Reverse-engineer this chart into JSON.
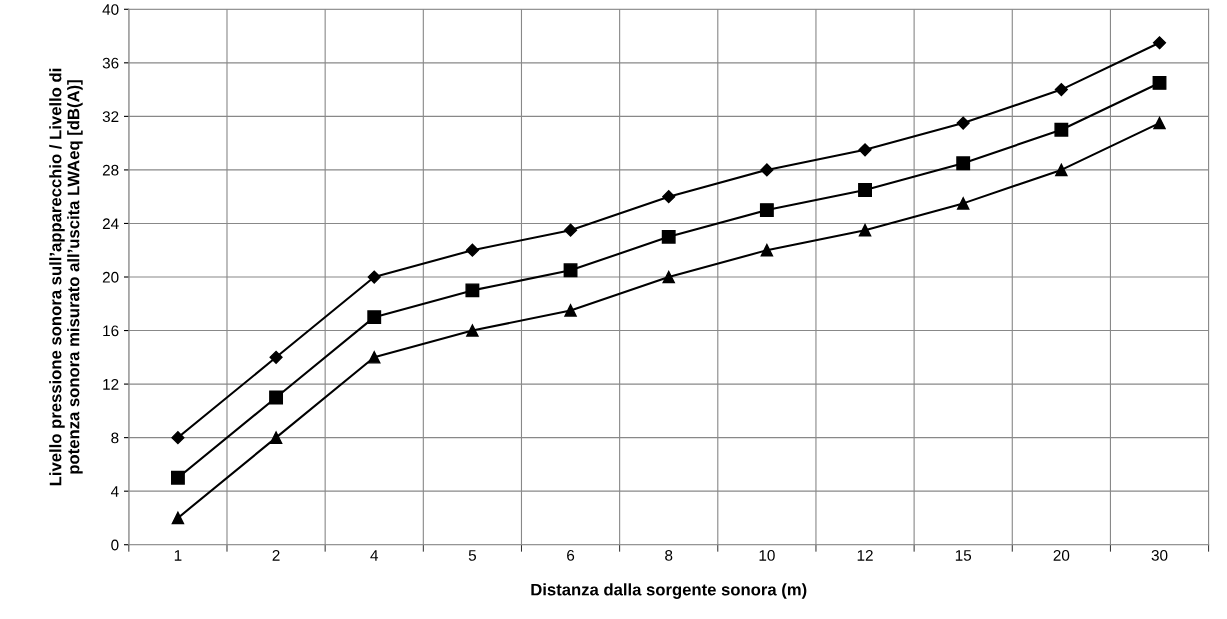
{
  "chart_data": {
    "type": "line",
    "xlabel": "Distanza dalla sorgente sonora (m)",
    "ylabel": "Livello pressione sonora sull’apparecchio / Livello di\npotenza sonora misurato all’uscita LWAeq [dB(A)]",
    "categories": [
      "1",
      "2",
      "4",
      "5",
      "6",
      "8",
      "10",
      "12",
      "15",
      "20",
      "30"
    ],
    "series": [
      {
        "color": "#000000",
        "marker": "diamond",
        "values": [
          8,
          14,
          20,
          22,
          23.5,
          26,
          28,
          29.5,
          31.5,
          34,
          37.5
        ]
      },
      {
        "color": "#000000",
        "marker": "square",
        "values": [
          5,
          11,
          17,
          19,
          20.5,
          23,
          25,
          26.5,
          28.5,
          31,
          34.5
        ]
      },
      {
        "color": "#000000",
        "marker": "triangle",
        "values": [
          2,
          8,
          14,
          16,
          17.5,
          20,
          22,
          23.5,
          25.5,
          28,
          31.5
        ]
      }
    ],
    "ylim": [
      0,
      40
    ],
    "yticks": [
      0,
      4,
      8,
      12,
      16,
      20,
      24,
      28,
      32,
      36,
      40
    ],
    "grid": true,
    "legend": false,
    "line_style": "solid"
  }
}
